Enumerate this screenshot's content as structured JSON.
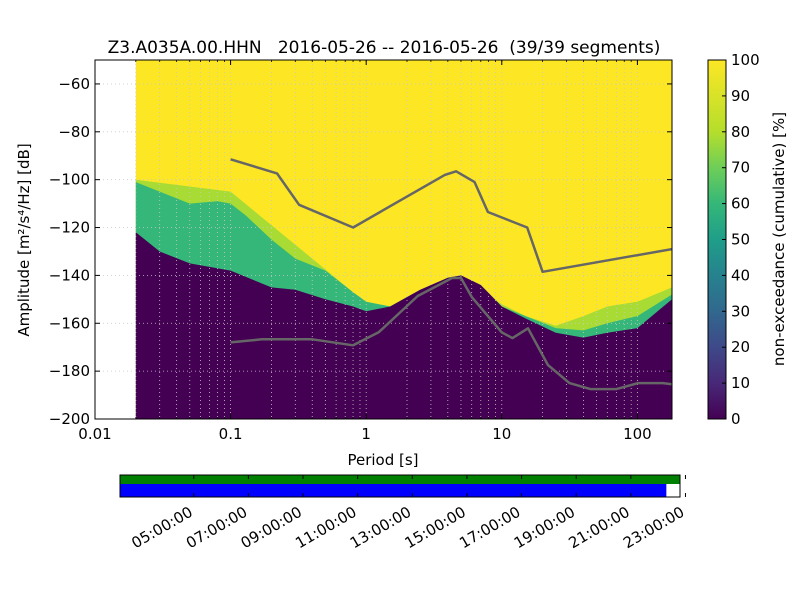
{
  "chart_data": {
    "type": "heatmap",
    "title": "Z3.A035A.00.HHN   2016-05-26 -- 2016-05-26  (39/39 segments)",
    "xlabel": "Period [s]",
    "ylabel": "Amplitude [m²/s⁴/Hz] [dB]",
    "x_scale": "log",
    "xlim": [
      0.01,
      180
    ],
    "ylim": [
      -200,
      -50
    ],
    "x_ticks": [
      0.01,
      0.1,
      1,
      10,
      100
    ],
    "x_tick_labels": [
      "0.01",
      "0.1",
      "1",
      "10",
      "100"
    ],
    "y_ticks": [
      -60,
      -80,
      -100,
      -120,
      -140,
      -160,
      -180,
      -200
    ],
    "y_tick_labels": [
      "−60",
      "−80",
      "−100",
      "−120",
      "−140",
      "−160",
      "−180",
      "−200"
    ],
    "data_period_range": [
      0.02,
      180
    ],
    "colorbar": {
      "label": "non-exceedance (cumulative) [%]",
      "ticks": [
        0,
        10,
        20,
        30,
        40,
        50,
        60,
        70,
        80,
        90,
        100
      ],
      "tick_labels": [
        "0",
        "10",
        "20",
        "30",
        "40",
        "50",
        "60",
        "70",
        "80",
        "90",
        "100"
      ],
      "colormap": "viridis"
    },
    "percentile_boundaries": [
      {
        "name": "lower",
        "color": "#440154",
        "points": [
          [
            0.02,
            -122
          ],
          [
            0.03,
            -130
          ],
          [
            0.05,
            -135
          ],
          [
            0.1,
            -138
          ],
          [
            0.2,
            -145
          ],
          [
            0.3,
            -146
          ],
          [
            0.5,
            -150
          ],
          [
            0.8,
            -153
          ],
          [
            1,
            -155
          ],
          [
            1.5,
            -153
          ],
          [
            2.5,
            -146
          ],
          [
            4,
            -141
          ],
          [
            5,
            -140
          ],
          [
            7,
            -144
          ],
          [
            10,
            -153
          ],
          [
            15,
            -158
          ],
          [
            25,
            -164
          ],
          [
            40,
            -166
          ],
          [
            60,
            -164
          ],
          [
            100,
            -162
          ],
          [
            180,
            -150
          ]
        ]
      },
      {
        "name": "green",
        "color": "#35b779",
        "points": [
          [
            0.02,
            -101
          ],
          [
            0.03,
            -105
          ],
          [
            0.05,
            -110
          ],
          [
            0.08,
            -109
          ],
          [
            0.1,
            -110
          ],
          [
            0.13,
            -115
          ],
          [
            0.2,
            -125
          ],
          [
            0.3,
            -133
          ],
          [
            0.5,
            -138
          ],
          [
            0.8,
            -147
          ],
          [
            1,
            -151
          ],
          [
            1.5,
            -153
          ],
          [
            2.5,
            -146
          ],
          [
            4,
            -141
          ],
          [
            5,
            -140
          ],
          [
            7,
            -144
          ],
          [
            10,
            -153
          ],
          [
            15,
            -157
          ],
          [
            25,
            -162
          ],
          [
            40,
            -163
          ],
          [
            60,
            -160
          ],
          [
            100,
            -157
          ],
          [
            180,
            -148
          ]
        ]
      },
      {
        "name": "lightgreen",
        "color": "#a8db34",
        "points": [
          [
            0.02,
            -100
          ],
          [
            0.1,
            -105
          ],
          [
            0.8,
            -147
          ],
          [
            1,
            -151
          ],
          [
            1.5,
            -153
          ],
          [
            2.5,
            -146
          ],
          [
            5,
            -140
          ],
          [
            10,
            -152
          ],
          [
            15,
            -157
          ],
          [
            25,
            -161
          ],
          [
            40,
            -157
          ],
          [
            60,
            -153
          ],
          [
            100,
            -151
          ],
          [
            180,
            -145
          ]
        ]
      }
    ],
    "reference_curves": [
      {
        "name": "NHNM",
        "points": [
          [
            0.1,
            -91.5
          ],
          [
            0.22,
            -97.4
          ],
          [
            0.32,
            -110.5
          ],
          [
            0.8,
            -120
          ],
          [
            3.8,
            -98
          ],
          [
            4.6,
            -96.5
          ],
          [
            6.3,
            -101
          ],
          [
            7.9,
            -113.5
          ],
          [
            15.4,
            -120
          ],
          [
            20,
            -138.5
          ],
          [
            180,
            -129
          ]
        ]
      },
      {
        "name": "NLNM",
        "points": [
          [
            0.1,
            -168
          ],
          [
            0.17,
            -166.7
          ],
          [
            0.4,
            -166.7
          ],
          [
            0.8,
            -169.2
          ],
          [
            1.24,
            -163.7
          ],
          [
            2.4,
            -148.6
          ],
          [
            4.3,
            -141.1
          ],
          [
            5,
            -141.1
          ],
          [
            6,
            -149
          ],
          [
            10,
            -163.8
          ],
          [
            12,
            -166.2
          ],
          [
            15.6,
            -162.1
          ],
          [
            21.9,
            -177.5
          ],
          [
            31.6,
            -185
          ],
          [
            45,
            -187.5
          ],
          [
            70,
            -187.5
          ],
          [
            101,
            -185
          ],
          [
            154,
            -185
          ],
          [
            180,
            -185.5
          ]
        ]
      }
    ],
    "colors": {
      "background_fill": "#fde725",
      "reference_curve": "#666666",
      "grid": "#c8c8c8"
    }
  },
  "timeline": {
    "tick_labels": [
      "05:00:00",
      "07:00:00",
      "09:00:00",
      "11:00:00",
      "13:00:00",
      "15:00:00",
      "17:00:00",
      "19:00:00",
      "21:00:00",
      "23:00:00"
    ],
    "tick_hours": [
      5,
      7,
      9,
      11,
      13,
      15,
      17,
      19,
      21,
      23
    ],
    "range_hours": [
      2.3,
      22.8
    ],
    "data_coverage_hours": [
      2.3,
      22.8
    ],
    "used_coverage_hours": [
      2.3,
      22.3
    ],
    "colors": {
      "coverage": "#008000",
      "used": "#0000ff"
    }
  }
}
